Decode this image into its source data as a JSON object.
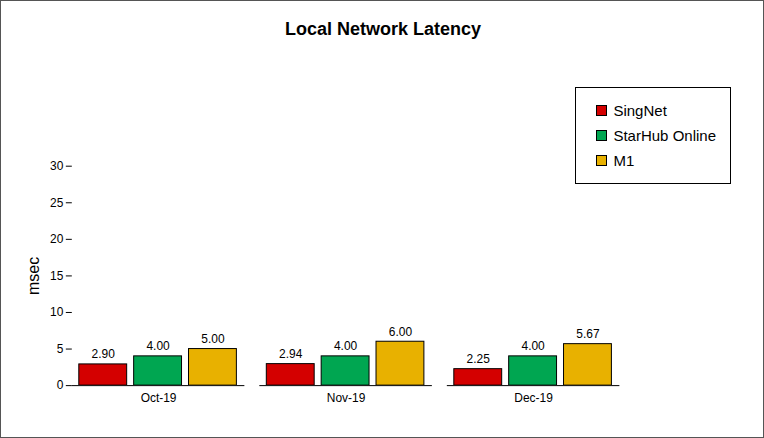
{
  "chart_data": {
    "type": "bar",
    "title": "Local Network Latency",
    "y_label": "msec",
    "categories": [
      "Oct-19",
      "Nov-19",
      "Dec-19"
    ],
    "series": [
      {
        "name": "SingNet",
        "color": "#d40000",
        "values": [
          2.9,
          2.94,
          2.25
        ],
        "value_labels": [
          "2.90",
          "2.94",
          "2.25"
        ]
      },
      {
        "name": "StarHub Online",
        "color": "#00a651",
        "values": [
          4,
          4,
          4
        ],
        "value_labels": [
          "4.00",
          "4.00",
          "4.00"
        ]
      },
      {
        "name": "M1",
        "color": "#e8b100",
        "values": [
          5,
          6,
          5.67
        ],
        "value_labels": [
          "5.00",
          "6.00",
          "5.67"
        ]
      }
    ],
    "ylim": [
      0,
      30
    ],
    "yticks": [
      0,
      5,
      10,
      15,
      20,
      25,
      30
    ],
    "grid": false,
    "legend": "top-right",
    "data_labels": true
  }
}
